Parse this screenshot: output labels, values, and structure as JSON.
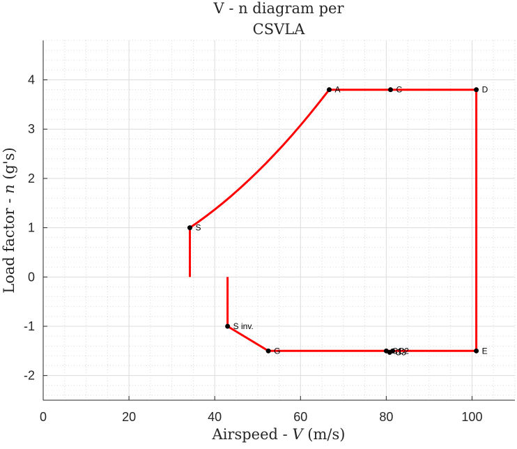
{
  "chart_data": {
    "type": "line",
    "title": [
      "V - n diagram per",
      "CSVLA"
    ],
    "xlabel": {
      "prefix": "Airspeed - ",
      "var": "V",
      "suffix": " (m/s)"
    },
    "ylabel": {
      "prefix": "Load factor - ",
      "var": "n",
      "suffix": " (g's)"
    },
    "xlim": [
      0,
      110
    ],
    "ylim": [
      -2.5,
      4.8
    ],
    "xticks": [
      0,
      20,
      40,
      60,
      80,
      100
    ],
    "xtick_labels": [
      "0",
      "20",
      "40",
      "60",
      "80",
      "100"
    ],
    "yticks": [
      -2,
      -1,
      0,
      1,
      2,
      3,
      4
    ],
    "ytick_labels": [
      "-2",
      "-1",
      "0",
      "1",
      "2",
      "3",
      "4"
    ],
    "grid": true,
    "minor_grid": true,
    "line_color": "#ff0000",
    "marker_color": "#000000",
    "series": [
      {
        "values": [
          [
            34.2,
            0
          ],
          [
            34.2,
            1
          ],
          [
            36,
            1.108
          ],
          [
            38,
            1.235
          ],
          [
            40,
            1.368
          ],
          [
            42,
            1.508
          ],
          [
            44,
            1.655
          ],
          [
            46,
            1.809
          ],
          [
            48,
            1.97
          ],
          [
            50,
            2.137
          ],
          [
            52,
            2.312
          ],
          [
            54,
            2.493
          ],
          [
            56,
            2.681
          ],
          [
            58,
            2.876
          ],
          [
            60,
            3.078
          ],
          [
            62,
            3.287
          ],
          [
            64,
            3.502
          ],
          [
            66.7,
            3.8
          ],
          [
            81,
            3.8
          ],
          [
            101,
            3.8
          ],
          [
            101,
            -1.5
          ],
          [
            80,
            -1.5
          ],
          [
            52.5,
            -1.5
          ],
          [
            43,
            -1
          ],
          [
            43,
            0
          ]
        ]
      }
    ],
    "points": [
      {
        "label": "S",
        "x": 34.2,
        "y": 1
      },
      {
        "label": "A",
        "x": 66.7,
        "y": 3.8
      },
      {
        "label": "C",
        "x": 81,
        "y": 3.8
      },
      {
        "label": "D",
        "x": 101,
        "y": 3.8
      },
      {
        "label": "E",
        "x": 101,
        "y": -1.5
      },
      {
        "label": "S inv.",
        "x": 43,
        "y": -1
      },
      {
        "label": "G",
        "x": 52.5,
        "y": -1.5
      },
      {
        "label": "C1",
        "x": 80,
        "y": -1.5
      },
      {
        "label": "C2",
        "x": 81.5,
        "y": -1.5
      },
      {
        "label": "C3",
        "x": 80.8,
        "y": -1.53
      }
    ]
  }
}
